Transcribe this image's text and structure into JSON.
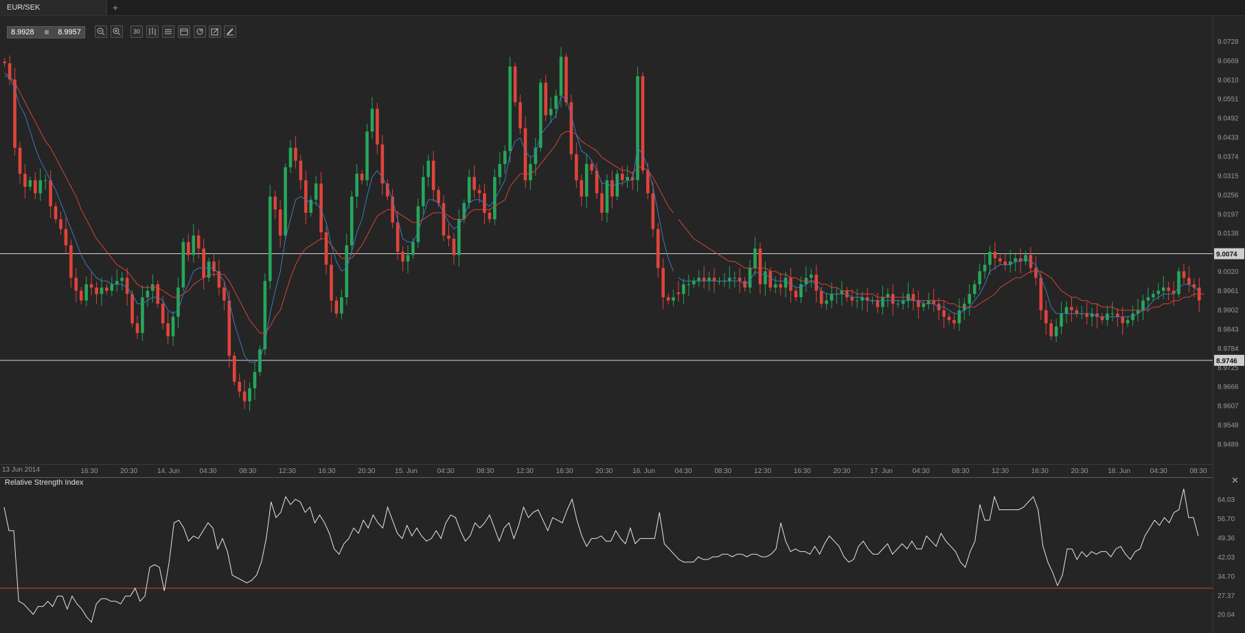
{
  "tab": {
    "label": "EUR/SEK",
    "add_label": "+"
  },
  "quote": {
    "bid": "8.9928",
    "ask": "8.9957"
  },
  "toolbar": {
    "tool_labels": [
      "",
      "",
      "30",
      "",
      "",
      "",
      "",
      "",
      ""
    ]
  },
  "indicator": {
    "title": "Relative Strength Index",
    "close_label": "✕"
  },
  "colors": {
    "bull": "#26a65b",
    "bear": "#e0443a",
    "ma_fast": "#3b7bbf",
    "ma_slow": "#d9443a",
    "rsi_line": "#e8e8e8",
    "rsi_level": "#d9443a",
    "hline": "#d8d8d8"
  },
  "chart_data": [
    {
      "type": "candlestick",
      "title": "EUR/SEK",
      "y_ticks": [
        "9.0728",
        "9.0669",
        "9.0610",
        "9.0551",
        "9.0492",
        "9.0433",
        "9.0374",
        "9.0315",
        "9.0256",
        "9.0197",
        "9.0138",
        "9.0020",
        "8.9961",
        "8.9902",
        "8.9843",
        "8.9784",
        "8.9725",
        "8.9666",
        "8.9607",
        "8.9548",
        "8.9489"
      ],
      "ylim": [
        8.945,
        9.077
      ],
      "x_start_label": "13 Jun 2014",
      "x_ticks": [
        "16:30",
        "20:30",
        "14. Jun",
        "04:30",
        "08:30",
        "12:30",
        "16:30",
        "20:30",
        "15. Jun",
        "04:30",
        "08:30",
        "12:30",
        "16:30",
        "20:30",
        "16. Jun",
        "04:30",
        "08:30",
        "12:30",
        "16:30",
        "20:30",
        "17. Jun",
        "04:30",
        "08:30",
        "12:30",
        "16:30",
        "20:30",
        "18. Jun",
        "04:30",
        "08:30"
      ],
      "horizontal_lines": [
        {
          "value": 9.0074,
          "label": "9.0074"
        },
        {
          "value": 8.9746,
          "label": "8.9746"
        }
      ],
      "closes": [
        9.066,
        9.061,
        9.04,
        9.032,
        9.028,
        9.03,
        9.026,
        9.03,
        9.03,
        9.022,
        9.018,
        9.015,
        9.01,
        9.0,
        8.996,
        8.993,
        8.998,
        8.997,
        8.995,
        8.997,
        8.996,
        8.998,
        8.999,
        9.0,
        8.995,
        8.986,
        8.983,
        8.994,
        8.996,
        8.998,
        8.992,
        8.986,
        8.982,
        8.988,
        8.997,
        9.011,
        9.007,
        9.013,
        9.009,
        9.0,
        9.005,
        9.002,
        8.997,
        8.993,
        8.976,
        8.968,
        8.965,
        8.962,
        8.966,
        8.971,
        8.978,
        8.999,
        9.025,
        9.021,
        9.013,
        9.034,
        9.04,
        9.036,
        9.03,
        9.02,
        9.024,
        9.029,
        9.014,
        9.004,
        8.993,
        8.989,
        8.994,
        9.01,
        9.025,
        9.032,
        9.03,
        9.045,
        9.052,
        9.041,
        9.029,
        9.025,
        9.017,
        9.008,
        9.005,
        9.007,
        9.011,
        9.022,
        9.031,
        9.036,
        9.027,
        9.023,
        9.013,
        9.012,
        9.007,
        9.018,
        9.023,
        9.031,
        9.027,
        9.026,
        9.02,
        9.018,
        9.031,
        9.035,
        9.039,
        9.065,
        9.054,
        9.046,
        9.03,
        9.035,
        9.04,
        9.06,
        9.05,
        9.052,
        9.056,
        9.068,
        9.054,
        9.038,
        9.03,
        9.025,
        9.035,
        9.033,
        9.026,
        9.02,
        9.03,
        9.025,
        9.032,
        9.03,
        9.031,
        9.03,
        9.062,
        9.033,
        9.026,
        9.015,
        9.003,
        8.994,
        8.993,
        8.994,
        8.995,
        8.998,
        8.998,
        8.999,
        9.0,
        8.999,
        9.0,
        8.999,
        8.999,
        8.999,
        9.0,
        9.0,
        8.999,
        8.997,
        9.003,
        9.009,
        8.998,
        9.002,
        8.997,
        8.998,
        8.997,
        9.0,
        8.996,
        8.994,
        8.998,
        9.0,
        9.001,
        8.996,
        8.992,
        8.993,
        8.995,
        8.995,
        8.996,
        8.994,
        8.993,
        8.993,
        8.994,
        8.993,
        8.993,
        8.991,
        8.994,
        8.995,
        8.992,
        8.992,
        8.993,
        8.995,
        8.993,
        8.991,
        8.992,
        8.993,
        8.992,
        8.99,
        8.988,
        8.987,
        8.986,
        8.99,
        8.992,
        8.995,
        8.998,
        9.002,
        9.004,
        9.008,
        9.006,
        9.005,
        9.004,
        9.005,
        9.006,
        9.005,
        9.007,
        9.003,
        9.0,
        8.99,
        8.986,
        8.982,
        8.985,
        8.989,
        8.991,
        8.99,
        8.989,
        8.989,
        8.988,
        8.989,
        8.988,
        8.987,
        8.989,
        8.989,
        8.988,
        8.986,
        8.987,
        8.989,
        8.99,
        8.993,
        8.994,
        8.995,
        8.996,
        8.997,
        8.996,
        8.995,
        9.002,
        9.0,
        8.998,
        8.997,
        8.993
      ],
      "ma_fast": [
        9.062,
        9.062,
        9.058,
        9.053,
        9.05,
        9.045,
        9.04,
        9.036,
        9.033,
        9.03,
        9.027,
        9.023,
        9.019,
        9.015,
        9.011,
        9.007,
        9.004,
        9.002,
        9.0,
        8.999,
        8.999,
        8.998,
        8.998,
        8.998,
        8.997,
        8.995,
        8.992,
        8.992,
        8.993,
        8.994,
        8.994,
        8.993,
        8.99,
        8.989,
        8.99,
        8.995,
        8.998,
        9.002,
        9.003,
        9.003,
        9.003,
        9.003,
        9.001,
        8.999,
        8.993,
        8.986,
        8.981,
        8.976,
        8.974,
        8.974,
        8.975,
        8.98,
        8.989,
        8.996,
        9.002,
        9.012,
        9.018,
        9.024,
        9.025,
        9.024,
        9.023,
        9.023,
        9.021,
        9.017,
        9.01,
        9.005,
        9.002,
        9.003,
        9.008,
        9.014,
        9.018,
        9.025,
        9.031,
        9.033,
        9.031,
        9.028,
        9.024,
        9.018,
        9.012,
        9.011,
        9.011,
        9.014,
        9.019,
        9.024,
        9.024,
        9.023,
        9.02,
        9.017,
        9.015,
        9.016,
        9.019,
        9.023,
        9.024,
        9.024,
        9.023,
        9.022,
        9.024,
        9.027,
        9.03,
        9.038,
        9.042,
        9.043,
        9.039,
        9.037,
        9.038,
        9.044,
        9.046,
        9.048,
        9.05,
        9.056,
        9.055,
        9.05,
        9.044,
        9.039,
        9.038,
        9.036,
        9.033,
        9.029,
        9.029,
        9.028,
        9.029,
        9.029,
        9.03,
        9.03,
        9.04,
        9.038,
        9.034,
        9.028,
        9.02,
        9.012,
        9.006,
        9.002,
        9.0,
        8.999,
        8.999,
        8.999,
        8.999,
        8.999,
        8.999,
        8.999,
        8.999,
        8.999,
        8.999,
        8.999,
        8.999,
        8.998,
        8.999,
        9.002,
        9.001,
        9.001,
        9.0,
        8.999,
        8.999,
        8.999,
        8.998,
        8.997,
        8.997,
        8.998,
        8.999,
        8.998,
        8.996,
        8.995,
        8.995,
        8.995,
        8.995,
        8.995,
        8.994,
        8.994,
        8.994,
        8.993,
        8.993,
        8.993,
        8.993,
        8.993,
        8.993,
        8.993,
        8.993,
        8.993,
        8.993,
        8.993,
        8.992,
        8.992,
        8.992,
        8.991,
        8.991,
        8.99,
        8.989,
        8.989,
        8.99,
        8.991,
        8.993,
        8.995,
        8.998,
        9.002,
        9.003,
        9.004,
        9.004,
        9.004,
        9.005,
        9.005,
        9.006,
        9.005,
        9.004,
        9.0,
        8.996,
        8.991,
        8.989,
        8.989,
        8.989,
        8.989,
        8.989,
        8.989,
        8.989,
        8.989,
        8.988,
        8.988,
        8.988,
        8.988,
        8.988,
        8.988,
        8.988,
        8.988,
        8.989,
        8.99,
        8.991,
        8.993,
        8.994,
        8.995,
        8.995,
        8.995,
        8.997,
        8.998,
        8.998,
        8.997,
        8.996
      ],
      "ma_slow": [
        9.063,
        9.062,
        9.06,
        9.057,
        9.054,
        9.051,
        9.048,
        9.045,
        9.042,
        9.04,
        9.037,
        9.034,
        9.031,
        9.028,
        9.025,
        9.021,
        9.018,
        9.015,
        9.012,
        9.01,
        9.008,
        9.006,
        9.004,
        9.003,
        9.002,
        9.0,
        8.998,
        8.997,
        8.997,
        8.997,
        8.997,
        8.996,
        8.995,
        8.994,
        8.994,
        8.995,
        8.996,
        8.998,
        8.999,
        9.0,
        9.001,
        9.001,
        9.001,
        9.001,
        8.999,
        8.996,
        8.993,
        8.99,
        8.987,
        8.985,
        8.983,
        8.983,
        8.985,
        8.988,
        8.99,
        8.995,
        9.0,
        9.004,
        9.007,
        9.009,
        9.01,
        9.011,
        9.012,
        9.012,
        9.01,
        9.008,
        9.006,
        9.006,
        9.006,
        9.008,
        9.01,
        9.013,
        9.016,
        9.019,
        9.02,
        9.021,
        9.021,
        9.02,
        9.019,
        9.018,
        9.017,
        9.017,
        9.018,
        9.019,
        9.02,
        9.02,
        9.02,
        9.019,
        9.018,
        9.018,
        9.018,
        9.02,
        9.021,
        9.021,
        9.021,
        9.021,
        9.022,
        9.023,
        9.024,
        9.028,
        9.03,
        9.032,
        9.032,
        9.032,
        9.033,
        9.035,
        9.037,
        9.039,
        9.041,
        9.044,
        9.045,
        9.045,
        9.044,
        9.042,
        9.041,
        9.04,
        9.039,
        9.037,
        9.036,
        9.035,
        9.034,
        9.033,
        9.033,
        9.032,
        9.034,
        9.034,
        9.033,
        9.031,
        9.028,
        9.025,
        9.022,
        9.02,
        9.018,
        9.016,
        9.014,
        9.012,
        9.011,
        9.01,
        9.009,
        9.008,
        9.007,
        9.006,
        9.005,
        9.005,
        9.004,
        9.003,
        9.003,
        9.003,
        9.003,
        9.003,
        9.002,
        9.002,
        9.001,
        9.001,
        9.0,
        9.0,
        8.999,
        8.999,
        8.999,
        8.999,
        8.998,
        8.998,
        8.997,
        8.997,
        8.996,
        8.996,
        8.996,
        8.995,
        8.995,
        8.995,
        8.995,
        8.994,
        8.994,
        8.994,
        8.994,
        8.994,
        8.994,
        8.994,
        8.993,
        8.993,
        8.993,
        8.993,
        8.993,
        8.993,
        8.993,
        8.992,
        8.992,
        8.991,
        8.991,
        8.991,
        8.991,
        8.992,
        8.993,
        8.994,
        8.995,
        8.997,
        8.998,
        8.999,
        9.0,
        9.0,
        9.001,
        9.002,
        9.002,
        9.002,
        9.001,
        9.0,
        8.998,
        8.996,
        8.995,
        8.994,
        8.994,
        8.993,
        8.993,
        8.992,
        8.992,
        8.991,
        8.991,
        8.991,
        8.99,
        8.99,
        8.99,
        8.99,
        8.99,
        8.99,
        8.99,
        8.991,
        8.991,
        8.992,
        8.992,
        8.993,
        8.993,
        8.994,
        8.994,
        8.995,
        8.995,
        8.995
      ]
    },
    {
      "type": "line",
      "title": "Relative Strength Index",
      "y_ticks": [
        "64.03",
        "56.70",
        "49.36",
        "42.03",
        "34.70",
        "27.37",
        "20.04"
      ],
      "ylim": [
        15.5,
        68.0
      ],
      "level": 30.0,
      "values": [
        61,
        52,
        52,
        25,
        24,
        22,
        20,
        23,
        23,
        25,
        23,
        27,
        27,
        22,
        27,
        24,
        22,
        19,
        17,
        24,
        26,
        26,
        25,
        25,
        24,
        27,
        27,
        30,
        25,
        27,
        38,
        39,
        38,
        29,
        40,
        55,
        56,
        53,
        48,
        50,
        49,
        52,
        55,
        53,
        45,
        49,
        44,
        35,
        34,
        33,
        32,
        33,
        35,
        40,
        49,
        63,
        57,
        59,
        65,
        62,
        64,
        63,
        59,
        61,
        55,
        58,
        55,
        51,
        45,
        43,
        47,
        49,
        53,
        51,
        56,
        53,
        58,
        55,
        53,
        61,
        56,
        51,
        49,
        54,
        50,
        53,
        50,
        48,
        49,
        52,
        49,
        55,
        58,
        57,
        52,
        48,
        50,
        55,
        53,
        55,
        58,
        53,
        48,
        53,
        55,
        49,
        54,
        61,
        57,
        59,
        60,
        56,
        52,
        57,
        56,
        55,
        60,
        64,
        56,
        50,
        46,
        49,
        49,
        50,
        48,
        48,
        52,
        49,
        47,
        53,
        47,
        49,
        49,
        49,
        49,
        59,
        47,
        45,
        43,
        41,
        40,
        40,
        40,
        42,
        41,
        41,
        42,
        42,
        43,
        43,
        42,
        43,
        43,
        42,
        43,
        43,
        42,
        42,
        43,
        45,
        55,
        48,
        44,
        45,
        44,
        44,
        43,
        46,
        43,
        47,
        50,
        48,
        46,
        42,
        40,
        41,
        46,
        48,
        45,
        43,
        43,
        45,
        47,
        43,
        45,
        47,
        45,
        48,
        45,
        45,
        50,
        48,
        46,
        51,
        48,
        46,
        44,
        40,
        38,
        44,
        48,
        62,
        56,
        56,
        65,
        60,
        60,
        60,
        60,
        60,
        61,
        63,
        65,
        60,
        46,
        40,
        36,
        31,
        35,
        45,
        45,
        41,
        44,
        42,
        44,
        43,
        44,
        44,
        42,
        45,
        46,
        43,
        41,
        44,
        45,
        50,
        53,
        56,
        54,
        57,
        55,
        59,
        60,
        68,
        57,
        57,
        50
      ]
    }
  ]
}
